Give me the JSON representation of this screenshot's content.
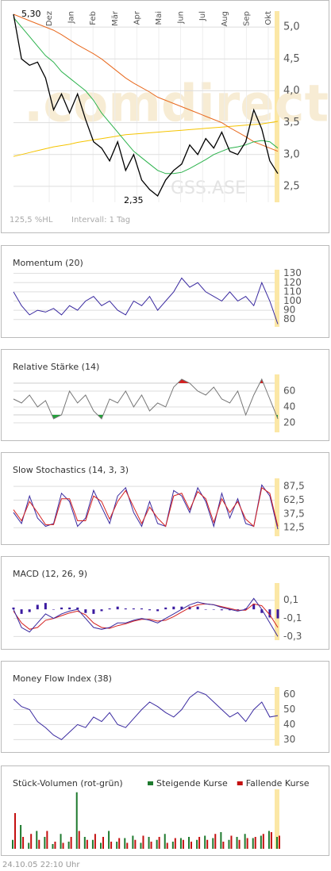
{
  "chart_data": [
    {
      "type": "line",
      "months": [
        "Dez",
        "Jan",
        "Feb",
        "Mär",
        "Apr",
        "Mai",
        "Jun",
        "Jul",
        "Aug",
        "Sep",
        "Okt"
      ],
      "ylim": [
        2.25,
        5.25
      ],
      "yticks": [
        {
          "value": 2.5,
          "label": "2,5"
        },
        {
          "value": 3.0,
          "label": "3,0"
        },
        {
          "value": 3.5,
          "label": "3,5"
        },
        {
          "value": 4.0,
          "label": "4,0"
        },
        {
          "value": 4.5,
          "label": "4,5"
        },
        {
          "value": 5.0,
          "label": "5,0"
        }
      ],
      "grid": true,
      "annotations": {
        "high": "5,30",
        "low": "2,35"
      },
      "range": "125,5 %HL",
      "interval": "Intervall: 1 Tag",
      "watermark": ".comdirect",
      "symbol": "GSS.ASE",
      "series": [
        {
          "color": "#f5c400",
          "values": [
            2.97,
            3.0,
            3.03,
            3.06,
            3.09,
            3.12,
            3.14,
            3.16,
            3.19,
            3.21,
            3.23,
            3.25,
            3.27,
            3.29,
            3.31,
            3.32,
            3.33,
            3.34,
            3.35,
            3.36,
            3.37,
            3.38,
            3.39,
            3.4,
            3.41,
            3.42,
            3.43,
            3.44,
            3.45,
            3.46,
            3.47,
            3.48,
            3.5,
            3.52
          ]
        },
        {
          "color": "#e8691e",
          "values": [
            5.2,
            5.15,
            5.1,
            5.05,
            5.0,
            4.95,
            4.88,
            4.8,
            4.72,
            4.65,
            4.58,
            4.5,
            4.4,
            4.3,
            4.2,
            4.12,
            4.05,
            3.98,
            3.9,
            3.85,
            3.8,
            3.75,
            3.7,
            3.65,
            3.6,
            3.55,
            3.5,
            3.42,
            3.35,
            3.28,
            3.2,
            3.15,
            3.1,
            3.05
          ]
        },
        {
          "color": "#2bb24c",
          "values": [
            5.15,
            5.0,
            4.85,
            4.7,
            4.55,
            4.45,
            4.3,
            4.2,
            4.1,
            4.0,
            3.85,
            3.65,
            3.5,
            3.35,
            3.2,
            3.05,
            2.95,
            2.85,
            2.75,
            2.7,
            2.7,
            2.72,
            2.78,
            2.85,
            2.92,
            3.0,
            3.05,
            3.1,
            3.12,
            3.15,
            3.2,
            3.22,
            3.2,
            3.1
          ]
        },
        {
          "color": "#000000",
          "values": [
            5.2,
            4.5,
            4.4,
            4.45,
            4.2,
            3.7,
            3.95,
            3.65,
            3.95,
            3.55,
            3.2,
            3.1,
            2.9,
            3.2,
            2.75,
            3.0,
            2.6,
            2.45,
            2.35,
            2.6,
            2.75,
            2.85,
            3.15,
            3.0,
            3.25,
            3.1,
            3.35,
            3.05,
            3.0,
            3.2,
            3.7,
            3.4,
            2.9,
            2.7
          ]
        }
      ]
    },
    {
      "type": "line",
      "title": "Momentum (20)",
      "ylim": [
        72,
        134
      ],
      "yticks": [
        80,
        90,
        100,
        110,
        120,
        130
      ],
      "grid": true,
      "series": [
        {
          "color": "#3a2aa0",
          "values": [
            110,
            95,
            85,
            90,
            88,
            92,
            85,
            95,
            90,
            100,
            105,
            95,
            100,
            90,
            85,
            100,
            95,
            105,
            90,
            100,
            110,
            125,
            115,
            120,
            110,
            105,
            100,
            110,
            100,
            105,
            95,
            120,
            100,
            75
          ]
        }
      ]
    },
    {
      "type": "line",
      "title": "Relative Stärke (14)",
      "ylim": [
        8,
        81
      ],
      "yticks": [
        20,
        40,
        60
      ],
      "grid": true,
      "oversold": 30,
      "overbought": 70,
      "series": [
        {
          "color": "#777777",
          "values": [
            50,
            45,
            55,
            40,
            48,
            25,
            30,
            60,
            45,
            55,
            35,
            25,
            50,
            45,
            60,
            40,
            55,
            35,
            45,
            40,
            65,
            75,
            70,
            60,
            55,
            65,
            50,
            45,
            60,
            30,
            55,
            75,
            50,
            25
          ]
        }
      ]
    },
    {
      "type": "line",
      "title": "Slow Stochastics (14, 3, 3)",
      "ylim": [
        -3,
        102
      ],
      "yticks": [
        {
          "value": 12.5,
          "label": "12,5"
        },
        {
          "value": 37.5,
          "label": "37,5"
        },
        {
          "value": 62.5,
          "label": "62,5"
        },
        {
          "value": 87.5,
          "label": "87,5"
        }
      ],
      "grid": true,
      "series": [
        {
          "color": "#3a2aa0",
          "values": [
            40,
            20,
            70,
            30,
            15,
            20,
            75,
            60,
            15,
            30,
            80,
            50,
            20,
            70,
            85,
            40,
            15,
            60,
            20,
            15,
            80,
            70,
            40,
            85,
            60,
            15,
            75,
            30,
            65,
            20,
            15,
            90,
            70,
            10
          ]
        },
        {
          "color": "#d42020",
          "values": [
            45,
            25,
            60,
            40,
            18,
            18,
            65,
            65,
            25,
            25,
            70,
            60,
            28,
            60,
            80,
            50,
            20,
            50,
            30,
            15,
            70,
            75,
            45,
            78,
            65,
            22,
            65,
            40,
            60,
            28,
            15,
            85,
            75,
            15
          ]
        }
      ]
    },
    {
      "type": "line",
      "title": "MACD (12, 26, 9)",
      "ylim": [
        -0.34,
        0.29
      ],
      "yticks": [
        {
          "value": -0.3,
          "label": "-0,3"
        },
        {
          "value": -0.1,
          "label": "-0,1"
        },
        {
          "value": 0.1,
          "label": "0,1"
        }
      ],
      "grid": true,
      "series": [
        {
          "kind": "bar",
          "color": "#3a1aa0",
          "values": [
            0.02,
            -0.05,
            -0.03,
            0.05,
            0.07,
            0,
            0.02,
            0.02,
            0.02,
            -0.04,
            -0.05,
            -0.02,
            0.01,
            0.03,
            0.01,
            0.01,
            0.01,
            -0.01,
            -0.02,
            0.02,
            0.03,
            0.03,
            0.03,
            0.03,
            0,
            0,
            -0.01,
            -0.01,
            -0.01,
            0.01,
            0.06,
            -0.04,
            -0.09,
            -0.1
          ]
        },
        {
          "color": "#d42020",
          "values": [
            -0.02,
            -0.15,
            -0.22,
            -0.2,
            -0.12,
            -0.1,
            -0.07,
            -0.04,
            -0.02,
            -0.06,
            -0.15,
            -0.2,
            -0.21,
            -0.18,
            -0.16,
            -0.13,
            -0.11,
            -0.11,
            -0.13,
            -0.12,
            -0.08,
            -0.03,
            0.02,
            0.05,
            0.06,
            0.05,
            0.03,
            0.01,
            -0.01,
            -0.01,
            0.06,
            0.04,
            -0.06,
            -0.2
          ]
        },
        {
          "color": "#3a2aa0",
          "values": [
            0.0,
            -0.2,
            -0.25,
            -0.15,
            -0.05,
            -0.1,
            -0.05,
            -0.02,
            0.0,
            -0.1,
            -0.2,
            -0.22,
            -0.2,
            -0.15,
            -0.15,
            -0.12,
            -0.1,
            -0.12,
            -0.15,
            -0.1,
            -0.05,
            0.0,
            0.05,
            0.08,
            0.06,
            0.05,
            0.02,
            0.0,
            -0.02,
            0.0,
            0.12,
            0.0,
            -0.15,
            -0.3
          ]
        }
      ]
    },
    {
      "type": "line",
      "title": "Money Flow Index (38)",
      "ylim": [
        26,
        65
      ],
      "yticks": [
        30,
        40,
        50,
        60
      ],
      "grid": true,
      "series": [
        {
          "color": "#3a2aa0",
          "values": [
            57,
            52,
            50,
            42,
            38,
            33,
            30,
            35,
            40,
            38,
            45,
            42,
            48,
            40,
            38,
            44,
            50,
            55,
            52,
            48,
            45,
            50,
            58,
            62,
            60,
            55,
            50,
            45,
            48,
            42,
            50,
            55,
            45,
            46
          ]
        }
      ]
    },
    {
      "type": "bar",
      "title": "Stück-Volumen (rot-grün)",
      "ylim": [
        0,
        100
      ],
      "grid": false,
      "series": [
        {
          "name": "Steigende Kurse",
          "color": "#1e7a2e",
          "values": [
            15,
            40,
            10,
            30,
            20,
            8,
            25,
            12,
            95,
            20,
            15,
            10,
            30,
            12,
            18,
            22,
            10,
            20,
            15,
            25,
            12,
            18,
            20,
            15,
            22,
            18,
            28,
            15,
            20,
            25,
            18,
            22,
            30,
            20
          ]
        },
        {
          "name": "Fallende Kurse",
          "color": "#c41010",
          "values": [
            60,
            20,
            25,
            15,
            30,
            12,
            10,
            20,
            30,
            15,
            25,
            20,
            12,
            18,
            10,
            15,
            22,
            12,
            20,
            10,
            18,
            15,
            12,
            20,
            15,
            25,
            12,
            22,
            15,
            18,
            20,
            25,
            28,
            22
          ]
        }
      ]
    }
  ],
  "footer": "24.10.05   22:10 Uhr"
}
